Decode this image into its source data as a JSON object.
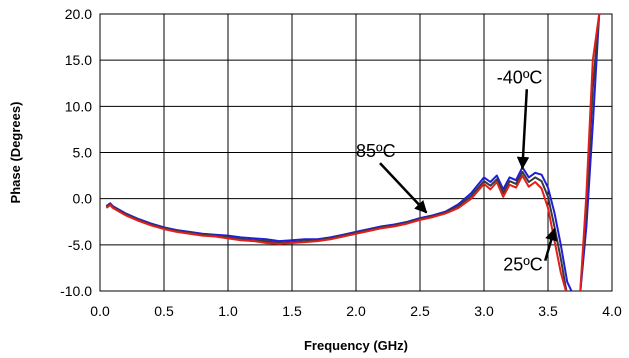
{
  "chart_data": {
    "type": "line",
    "title": "",
    "xlabel": "Frequency (GHz)",
    "ylabel": "Phase (Degrees)",
    "xlim": [
      0.0,
      4.0
    ],
    "ylim": [
      -10.0,
      20.0
    ],
    "x_ticks": [
      0.0,
      0.5,
      1.0,
      1.5,
      2.0,
      2.5,
      3.0,
      3.5,
      4.0
    ],
    "x_tick_labels": [
      "0.0",
      "0.5",
      "1.0",
      "1.5",
      "2.0",
      "2.5",
      "3.0",
      "3.5",
      "4.0"
    ],
    "y_ticks": [
      -10.0,
      -5.0,
      0.0,
      5.0,
      10.0,
      15.0,
      20.0
    ],
    "y_tick_labels": [
      "-10.0",
      "-5.0",
      "0.0",
      "5.0",
      "10.0",
      "15.0",
      "20.0"
    ],
    "grid": true,
    "legend": "none",
    "series": [
      {
        "color": "#1f1fd6",
        "x": [
          0.05,
          0.08,
          0.1,
          0.15,
          0.2,
          0.3,
          0.4,
          0.5,
          0.6,
          0.7,
          0.8,
          0.9,
          1.0,
          1.1,
          1.2,
          1.3,
          1.4,
          1.5,
          1.6,
          1.7,
          1.8,
          1.9,
          2.0,
          2.1,
          2.2,
          2.3,
          2.4,
          2.5,
          2.6,
          2.7,
          2.8,
          2.9,
          3.0,
          3.05,
          3.1,
          3.15,
          3.2,
          3.25,
          3.3,
          3.35,
          3.4,
          3.45,
          3.5,
          3.55,
          3.6,
          3.65,
          3.7,
          3.75,
          3.8,
          3.85,
          3.9
        ],
        "y": [
          -0.8,
          -0.5,
          -0.8,
          -1.2,
          -1.6,
          -2.2,
          -2.7,
          -3.1,
          -3.4,
          -3.6,
          -3.8,
          -3.9,
          -4.0,
          -4.2,
          -4.3,
          -4.4,
          -4.6,
          -4.5,
          -4.4,
          -4.4,
          -4.2,
          -3.9,
          -3.6,
          -3.3,
          -3.0,
          -2.8,
          -2.5,
          -2.1,
          -1.8,
          -1.4,
          -0.6,
          0.6,
          2.3,
          1.8,
          2.5,
          1.0,
          2.3,
          2.0,
          3.4,
          2.3,
          2.8,
          2.6,
          1.2,
          -1.5,
          -5.0,
          -9.0,
          -10.5,
          -10.5,
          -3.0,
          8.0,
          20.0
        ]
      },
      {
        "color": "#3a3a3a",
        "x": [
          0.05,
          0.08,
          0.1,
          0.15,
          0.2,
          0.3,
          0.4,
          0.5,
          0.6,
          0.7,
          0.8,
          0.9,
          1.0,
          1.1,
          1.2,
          1.3,
          1.4,
          1.5,
          1.6,
          1.7,
          1.8,
          1.9,
          2.0,
          2.1,
          2.2,
          2.3,
          2.4,
          2.5,
          2.6,
          2.7,
          2.8,
          2.9,
          3.0,
          3.05,
          3.1,
          3.15,
          3.2,
          3.25,
          3.3,
          3.35,
          3.4,
          3.45,
          3.5,
          3.55,
          3.6,
          3.65,
          3.7,
          3.75,
          3.8,
          3.85,
          3.9
        ],
        "y": [
          -0.9,
          -0.6,
          -0.9,
          -1.3,
          -1.7,
          -2.3,
          -2.8,
          -3.2,
          -3.5,
          -3.7,
          -3.9,
          -4.0,
          -4.2,
          -4.4,
          -4.5,
          -4.6,
          -4.8,
          -4.7,
          -4.6,
          -4.5,
          -4.3,
          -4.0,
          -3.7,
          -3.4,
          -3.1,
          -2.9,
          -2.6,
          -2.2,
          -1.9,
          -1.5,
          -0.8,
          0.3,
          1.9,
          1.4,
          2.1,
          0.6,
          1.9,
          1.6,
          2.9,
          1.8,
          2.3,
          1.9,
          0.2,
          -3.0,
          -6.5,
          -10.5,
          -10.5,
          -10.5,
          -1.0,
          12.0,
          20.0
        ]
      },
      {
        "color": "#e0201c",
        "x": [
          0.05,
          0.08,
          0.1,
          0.15,
          0.2,
          0.3,
          0.4,
          0.5,
          0.6,
          0.7,
          0.8,
          0.9,
          1.0,
          1.1,
          1.2,
          1.3,
          1.4,
          1.5,
          1.6,
          1.7,
          1.8,
          1.9,
          2.0,
          2.1,
          2.2,
          2.3,
          2.4,
          2.5,
          2.6,
          2.7,
          2.8,
          2.9,
          3.0,
          3.05,
          3.1,
          3.15,
          3.2,
          3.25,
          3.3,
          3.35,
          3.4,
          3.45,
          3.5,
          3.55,
          3.6,
          3.65,
          3.7,
          3.75,
          3.8,
          3.85,
          3.9
        ],
        "y": [
          -1.0,
          -0.7,
          -1.0,
          -1.4,
          -1.8,
          -2.4,
          -2.9,
          -3.3,
          -3.6,
          -3.8,
          -4.0,
          -4.1,
          -4.3,
          -4.5,
          -4.6,
          -4.8,
          -4.9,
          -4.8,
          -4.7,
          -4.6,
          -4.4,
          -4.1,
          -3.8,
          -3.5,
          -3.2,
          -3.0,
          -2.7,
          -2.3,
          -2.0,
          -1.6,
          -1.0,
          0.0,
          1.6,
          1.0,
          1.8,
          0.2,
          1.5,
          1.2,
          2.5,
          1.3,
          1.8,
          1.1,
          -1.0,
          -4.5,
          -8.0,
          -10.5,
          -10.5,
          -10.5,
          0.5,
          15.0,
          20.0
        ]
      }
    ],
    "annotations": [
      {
        "text": "-40ºC",
        "x": 3.1,
        "y": 12.5,
        "arrow_to": [
          3.3,
          3.3
        ]
      },
      {
        "text": "85ºC",
        "x": 2.0,
        "y": 4.5,
        "arrow_to": [
          2.55,
          -1.5
        ]
      },
      {
        "text": "25ºC",
        "x": 3.15,
        "y": -7.8,
        "arrow_to": [
          3.55,
          -3.3
        ]
      }
    ]
  }
}
